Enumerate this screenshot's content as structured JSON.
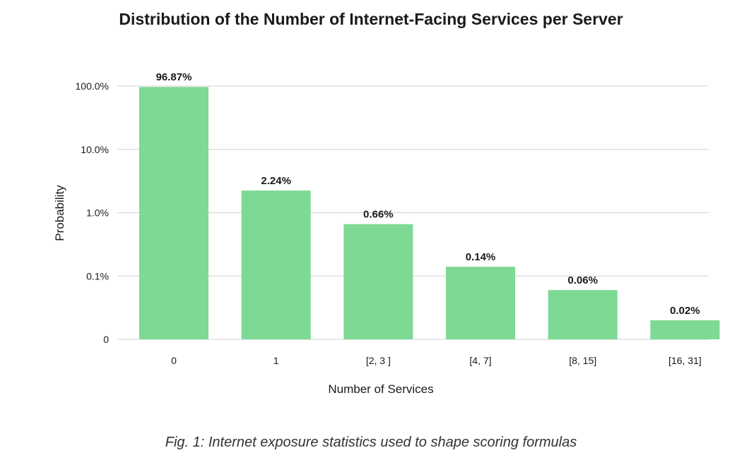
{
  "chart_data": {
    "type": "bar",
    "title": "Distribution of the Number of Internet-Facing Services per Server",
    "xlabel": "Number of Services",
    "ylabel": "Probability",
    "categories": [
      "0",
      "1",
      "[2, 3 ]",
      "[4, 7]",
      "[8, 15]",
      "[16, 31]"
    ],
    "values": [
      96.87,
      2.24,
      0.66,
      0.14,
      0.06,
      0.02
    ],
    "data_labels": [
      "96.87%",
      "2.24%",
      "0.66%",
      "0.14%",
      "0.06%",
      "0.02%"
    ],
    "y_scale": "log",
    "yticks": [
      0.01,
      0.1,
      1,
      10,
      100
    ],
    "ytick_labels": [
      "0",
      "0.1%",
      "1.0%",
      "10.0%",
      "100.0%"
    ],
    "ylim": [
      0.01,
      100
    ],
    "grid": true,
    "bar_color": "#7dd993"
  },
  "caption": "Fig. 1: Internet exposure statistics used to shape scoring formulas"
}
